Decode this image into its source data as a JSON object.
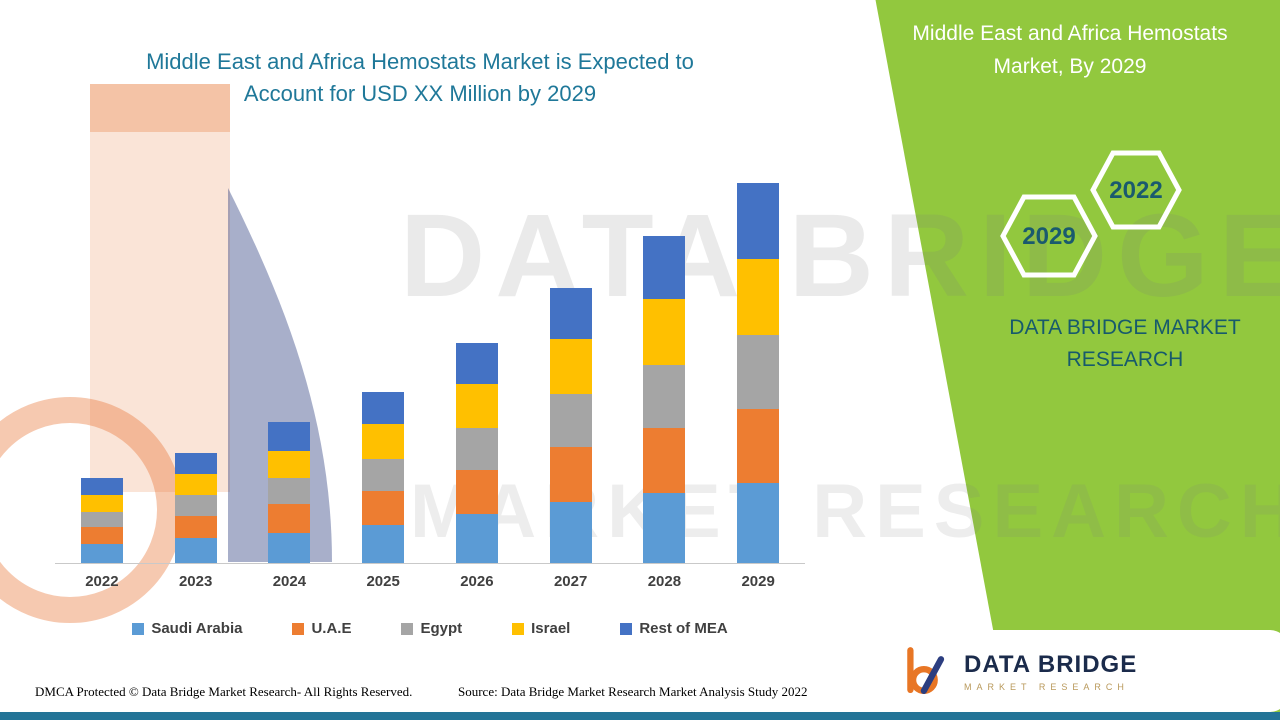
{
  "header": {
    "left_title_line1": "Middle East and Africa Hemostats Market is Expected to",
    "left_title_line2": "Account for USD XX Million by 2029",
    "right_title_line1": "Middle East and Africa Hemostats",
    "right_title_line2": "Market, By 2029"
  },
  "side_panel": {
    "panel_color": "#92C83E",
    "hexagon_lower_label": "2029",
    "hexagon_upper_label": "2022",
    "brand_line1": "DATA BRIDGE MARKET",
    "brand_line2": "RESEARCH",
    "brand_text_color": "#175A6C"
  },
  "watermark": {
    "line1": "DATA BRIDGE",
    "line2": "MARKET RESEARCH"
  },
  "chart_data": {
    "type": "bar",
    "stacked": true,
    "title": "Middle East and Africa Hemostats Market is Expected to Account for USD XX Million by 2029",
    "xlabel": "",
    "ylabel": "",
    "ylim": [
      0,
      105
    ],
    "grid": false,
    "legend_position": "bottom",
    "value_note": "Absolute values not labeled in figure (USD XX Million); values below are relative, estimated from bar pixel heights with 2029 total = 100.",
    "categories": [
      "2022",
      "2023",
      "2024",
      "2025",
      "2026",
      "2027",
      "2028",
      "2029"
    ],
    "series": [
      {
        "name": "Saudi Arabia",
        "color": "#5B9BD5",
        "values": [
          5,
          6.5,
          8,
          10,
          13,
          16,
          18.5,
          21
        ]
      },
      {
        "name": "U.A.E",
        "color": "#ED7D31",
        "values": [
          4.5,
          6,
          7.5,
          9,
          11.5,
          14.5,
          17,
          19.5
        ]
      },
      {
        "name": "Egypt",
        "color": "#A5A5A5",
        "values": [
          4,
          5.5,
          7,
          8.5,
          11,
          14,
          16.5,
          19.5
        ]
      },
      {
        "name": "Israel",
        "color": "#FFC000",
        "values": [
          4.5,
          5.5,
          7,
          9,
          11.5,
          14.5,
          17.5,
          20
        ]
      },
      {
        "name": "Rest of MEA",
        "color": "#4472C4",
        "values": [
          4.5,
          5.5,
          7.5,
          8.5,
          11,
          13.5,
          16.5,
          20
        ]
      }
    ],
    "totals_estimated": [
      22.5,
      29,
      37,
      45,
      58,
      72.5,
      86,
      100
    ]
  },
  "logo_card": {
    "brand_name": "DATA BRIDGE",
    "brand_subtitle": "MARKET RESEARCH"
  },
  "footer": {
    "dmca_text": "DMCA Protected © Data Bridge Market Research- All Rights Reserved.",
    "source_text": "Source: Data Bridge Market Research Market Analysis Study 2022",
    "bar_color": "#237497"
  }
}
